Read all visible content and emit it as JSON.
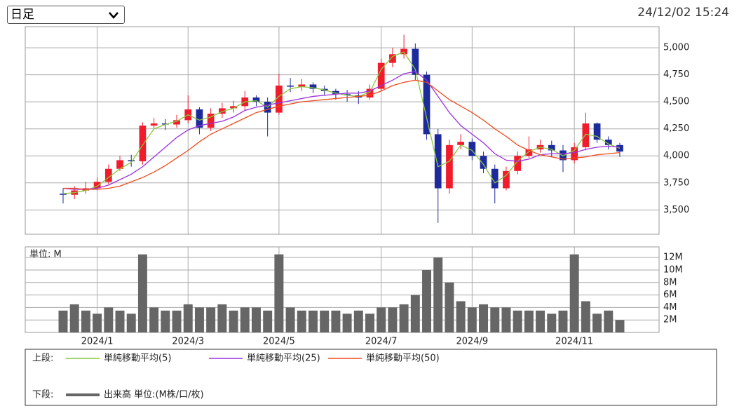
{
  "header": {
    "period": "日足",
    "timestamp": "24/12/02 15:24"
  },
  "chart_data": {
    "type": "candlestick",
    "categories": [
      null,
      null,
      null,
      "2024/1",
      null,
      null,
      null,
      null,
      null,
      null,
      null,
      "2024/3",
      null,
      null,
      null,
      null,
      null,
      null,
      null,
      "2024/5",
      null,
      null,
      null,
      null,
      null,
      null,
      null,
      null,
      "2024/7",
      null,
      null,
      null,
      null,
      null,
      null,
      null,
      "2024/9",
      null,
      null,
      null,
      null,
      null,
      null,
      null,
      null,
      "2024/11",
      null,
      null,
      null,
      null
    ],
    "open": [
      3650,
      3640,
      3680,
      3700,
      3760,
      3880,
      3960,
      3950,
      4280,
      4300,
      4290,
      4330,
      4430,
      4260,
      4390,
      4440,
      4460,
      4540,
      4500,
      4400,
      4650,
      4640,
      4660,
      4620,
      4600,
      4570,
      4560,
      4540,
      4620,
      4860,
      4940,
      4990,
      4750,
      4200,
      3700,
      4100,
      4130,
      4000,
      3880,
      3700,
      3860,
      4000,
      4060,
      4100,
      4050,
      3960,
      4080,
      4300,
      4150,
      4100
    ],
    "high": [
      3700,
      3720,
      3760,
      3800,
      3920,
      4000,
      4010,
      4310,
      4350,
      4340,
      4380,
      4560,
      4450,
      4440,
      4490,
      4510,
      4600,
      4560,
      4540,
      4760,
      4720,
      4710,
      4680,
      4650,
      4620,
      4610,
      4600,
      4660,
      4900,
      5000,
      5120,
      5040,
      4780,
      4250,
      4150,
      4200,
      4160,
      4040,
      3920,
      3900,
      4040,
      4180,
      4150,
      4140,
      4100,
      4120,
      4400,
      4310,
      4180,
      4120
    ],
    "low": [
      3560,
      3600,
      3650,
      3680,
      3740,
      3860,
      3900,
      3920,
      4250,
      4240,
      4260,
      4300,
      4200,
      4230,
      4350,
      4400,
      4420,
      4460,
      4180,
      4380,
      4590,
      4600,
      4580,
      4560,
      4520,
      4500,
      4480,
      4520,
      4600,
      4820,
      4900,
      4700,
      4150,
      3380,
      3650,
      4060,
      3960,
      3840,
      3560,
      3680,
      3830,
      3980,
      4030,
      3990,
      3850,
      3930,
      4050,
      4120,
      4060,
      3990
    ],
    "close": [
      3640,
      3680,
      3700,
      3760,
      3880,
      3960,
      3950,
      4280,
      4300,
      4290,
      4330,
      4430,
      4260,
      4390,
      4440,
      4460,
      4540,
      4500,
      4400,
      4650,
      4640,
      4660,
      4620,
      4600,
      4570,
      4560,
      4540,
      4620,
      4860,
      4940,
      4990,
      4750,
      4200,
      3700,
      4100,
      4130,
      4000,
      3880,
      3700,
      3860,
      4000,
      4060,
      4100,
      4050,
      3960,
      4080,
      4300,
      4150,
      4100,
      4040
    ],
    "up_color": "#f01c2c",
    "down_color": "#1c2a9c",
    "series": [
      {
        "name": "単純移動平均(5)",
        "color": "#8cc63f",
        "values": [
          3650,
          3660,
          3680,
          3720,
          3800,
          3880,
          3940,
          4100,
          4250,
          4290,
          4320,
          4380,
          4330,
          4360,
          4410,
          4440,
          4500,
          4510,
          4450,
          4550,
          4620,
          4640,
          4630,
          4610,
          4580,
          4560,
          4550,
          4590,
          4800,
          4920,
          4960,
          4800,
          4350,
          3900,
          3950,
          4100,
          4050,
          3920,
          3750,
          3820,
          3950,
          4040,
          4080,
          4060,
          4000,
          4050,
          4200,
          4180,
          4110,
          4070
        ]
      },
      {
        "name": "単純移動平均(25)",
        "color": "#9b30e0",
        "values": [
          3700,
          3690,
          3690,
          3700,
          3730,
          3780,
          3830,
          3900,
          3990,
          4080,
          4170,
          4240,
          4280,
          4300,
          4320,
          4360,
          4420,
          4450,
          4470,
          4490,
          4510,
          4530,
          4550,
          4560,
          4570,
          4580,
          4580,
          4600,
          4650,
          4700,
          4760,
          4780,
          4700,
          4550,
          4400,
          4280,
          4200,
          4120,
          4020,
          3960,
          3950,
          3970,
          4010,
          4020,
          4020,
          4030,
          4060,
          4080,
          4090,
          4080
        ]
      },
      {
        "name": "単純移動平均(50)",
        "color": "#f04a1a",
        "values": [
          3700,
          3700,
          3690,
          3690,
          3700,
          3720,
          3760,
          3800,
          3850,
          3910,
          3980,
          4050,
          4130,
          4200,
          4250,
          4300,
          4350,
          4400,
          4430,
          4460,
          4480,
          4500,
          4510,
          4520,
          4530,
          4540,
          4550,
          4560,
          4600,
          4650,
          4680,
          4700,
          4680,
          4600,
          4520,
          4460,
          4400,
          4330,
          4250,
          4180,
          4100,
          4050,
          4010,
          3990,
          3970,
          3980,
          3990,
          4010,
          4020,
          4030
        ]
      }
    ],
    "ylim": [
      3275,
      5195
    ],
    "yticks": [
      {
        "value": 3500,
        "label": "3,500"
      },
      {
        "value": 3750,
        "label": "3,750"
      },
      {
        "value": 4000,
        "label": "4,000"
      },
      {
        "value": 4250,
        "label": "4,250"
      },
      {
        "value": 4500,
        "label": "4,500"
      },
      {
        "value": 4750,
        "label": "4,750"
      },
      {
        "value": 5000,
        "label": "5,000"
      }
    ],
    "volume": {
      "name": "出来高 単位:(M株/口/枚)",
      "axis_label": "単位: M",
      "color": "#666666",
      "values": [
        3.5,
        4.5,
        3.5,
        3,
        4,
        3.5,
        3,
        12.5,
        4,
        3.5,
        3.5,
        4.5,
        4,
        4,
        4.5,
        3.5,
        4,
        4,
        3.5,
        12.5,
        4,
        3.5,
        3.5,
        3.5,
        3.5,
        3,
        3.5,
        3,
        4,
        4,
        4.5,
        6,
        10,
        12,
        8,
        5,
        4,
        4.5,
        4,
        4,
        3.5,
        3.5,
        3.5,
        3,
        3.5,
        12.5,
        5,
        3,
        3.5,
        2
      ],
      "ylim": [
        0,
        13.7
      ],
      "yticks": [
        {
          "value": 2,
          "label": "2M"
        },
        {
          "value": 4,
          "label": "4M"
        },
        {
          "value": 6,
          "label": "6M"
        },
        {
          "value": 8,
          "label": "8M"
        },
        {
          "value": 10,
          "label": "10M"
        },
        {
          "value": 12,
          "label": "12M"
        }
      ]
    },
    "legend_groups": [
      "上段:",
      "下段:"
    ],
    "grid": true
  }
}
